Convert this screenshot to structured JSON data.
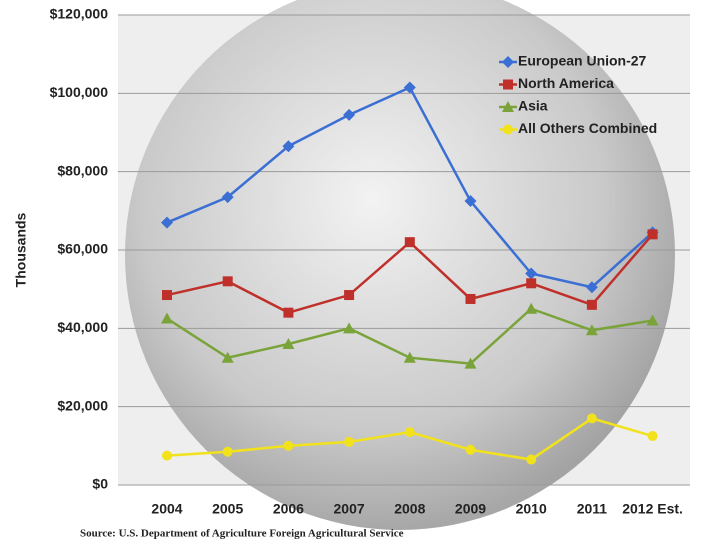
{
  "chart_data": {
    "type": "line",
    "y_label": "Thousands",
    "source": "Source: U.S. Department of Agriculture Foreign Agricultural Service",
    "categories": [
      "2004",
      "2005",
      "2006",
      "2007",
      "2008",
      "2009",
      "2010",
      "2011",
      "2012 Est."
    ],
    "series": [
      {
        "name": "European Union-27",
        "color": "#3b6fd4",
        "marker": "diamond",
        "values": [
          67000,
          73500,
          86500,
          94500,
          101500,
          72500,
          54000,
          50500,
          64500
        ]
      },
      {
        "name": "North America",
        "color": "#c0302a",
        "marker": "square",
        "values": [
          48500,
          52000,
          44000,
          48500,
          62000,
          47500,
          51500,
          46000,
          64000
        ]
      },
      {
        "name": "Asia",
        "color": "#7aa33a",
        "marker": "triangle",
        "values": [
          42500,
          32500,
          36000,
          40000,
          32500,
          31000,
          45000,
          39500,
          42000
        ]
      },
      {
        "name": "All Others Combined",
        "color": "#f2e21c",
        "marker": "circle",
        "values": [
          7500,
          8500,
          10000,
          11000,
          13500,
          9000,
          6500,
          17000,
          12500
        ]
      }
    ],
    "ylim": [
      0,
      120000
    ],
    "yticks": [
      {
        "value": 0,
        "label": "$0"
      },
      {
        "value": 20000,
        "label": "$20,000"
      },
      {
        "value": 40000,
        "label": "$40,000"
      },
      {
        "value": 60000,
        "label": "$60,000"
      },
      {
        "value": 80000,
        "label": "$80,000"
      },
      {
        "value": 100000,
        "label": "$100,000"
      },
      {
        "value": 120000,
        "label": "$120,000"
      }
    ],
    "grid": true,
    "legend": "top-right"
  }
}
